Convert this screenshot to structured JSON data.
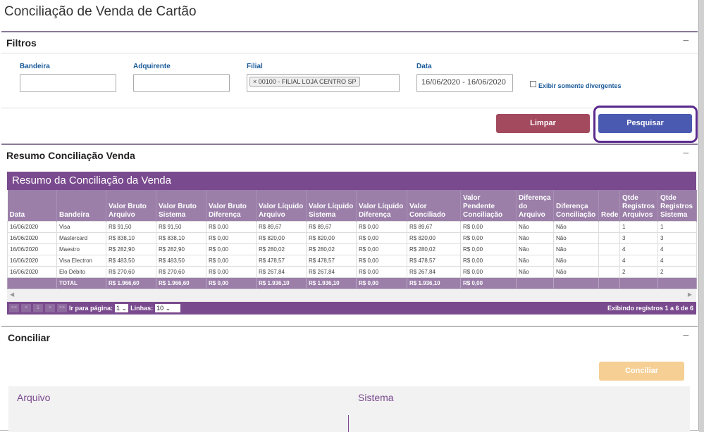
{
  "page_title": "Conciliação de Venda de Cartão",
  "filters": {
    "title": "Filtros",
    "collapse": "−",
    "bandeira_label": "Bandeira",
    "bandeira_value": "",
    "adquirente_label": "Adquirente",
    "adquirente_value": "",
    "filial_label": "Filial",
    "filial_tag": "00100 - FILIAL LOJA CENTRO SP",
    "tag_remove": "×",
    "data_label": "Data",
    "data_value": "16/06/2020 - 16/06/2020",
    "divergentes_label": "Exibir somente divergentes",
    "clear_label": "Limpar",
    "search_label": "Pesquisar"
  },
  "resumo": {
    "title": "Resumo Conciliação Venda",
    "collapse": "−",
    "table_title": "Resumo da Conciliação da Venda",
    "columns": [
      "Data",
      "Bandeira",
      "Valor Bruto Arquivo",
      "Valor Bruto Sistema",
      "Valor Bruto Diferença",
      "Valor Líquido Arquivo",
      "Valor Líquido Sistema",
      "Valor Líquido Diferença",
      "Valor Conciliado",
      "Valor Pendente Conciliação",
      "Diferença do Arquivo",
      "Diferença Conciliação",
      "Rede",
      "Qtde Registros Arquivos",
      "Qtde Registros Sistema"
    ],
    "rows": [
      [
        "16/06/2020",
        "Visa",
        "R$ 91,50",
        "R$ 91,50",
        "R$ 0,00",
        "R$ 89,67",
        "R$ 89,67",
        "R$ 0,00",
        "R$ 89,67",
        "R$ 0,00",
        "Não",
        "Não",
        "",
        "1",
        "1"
      ],
      [
        "16/06/2020",
        "Mastercard",
        "R$ 838,10",
        "R$ 838,10",
        "R$ 0,00",
        "R$ 820,00",
        "R$ 820,00",
        "R$ 0,00",
        "R$ 820,00",
        "R$ 0,00",
        "Não",
        "Não",
        "",
        "3",
        "3"
      ],
      [
        "16/06/2020",
        "Maestro",
        "R$ 282,90",
        "R$ 282,90",
        "R$ 0,00",
        "R$ 280,02",
        "R$ 280,02",
        "R$ 0,00",
        "R$ 280,02",
        "R$ 0,00",
        "Não",
        "Não",
        "",
        "4",
        "4"
      ],
      [
        "16/06/2020",
        "Visa Electron",
        "R$ 483,50",
        "R$ 483,50",
        "R$ 0,00",
        "R$ 478,57",
        "R$ 478,57",
        "R$ 0,00",
        "R$ 478,57",
        "R$ 0,00",
        "Não",
        "Não",
        "",
        "4",
        "4"
      ],
      [
        "16/06/2020",
        "Elo Débito",
        "R$ 270,60",
        "R$ 270,60",
        "R$ 0,00",
        "R$ 267,84",
        "R$ 267,84",
        "R$ 0,00",
        "R$ 267,84",
        "R$ 0,00",
        "Não",
        "Não",
        "",
        "2",
        "2"
      ]
    ],
    "total": [
      "",
      "TOTAL",
      "R$ 1.966,60",
      "R$ 1.966,60",
      "R$ 0,00",
      "R$ 1.936,10",
      "R$ 1.936,10",
      "R$ 0,00",
      "R$ 1.936,10",
      "R$ 0,00",
      "",
      "",
      "",
      "",
      ""
    ],
    "pager": {
      "first": "<<",
      "prev": "<",
      "page": "1",
      "next": ">",
      "last": ">>",
      "goto_label": "Ir para página:",
      "goto_value": "1",
      "lines_label": "Linhas:",
      "lines_value": "10",
      "status": "Exibindo registros 1 a 6 de 6"
    }
  },
  "conciliar": {
    "title": "Conciliar",
    "collapse": "−",
    "button": "Conciliar",
    "arquivo": "Arquivo",
    "sistema": "Sistema"
  },
  "colors": {
    "purple": "#7a4a8e",
    "clear": "#a44a5e",
    "search": "#4a5ab0",
    "conciliar": "#f6cf94"
  }
}
